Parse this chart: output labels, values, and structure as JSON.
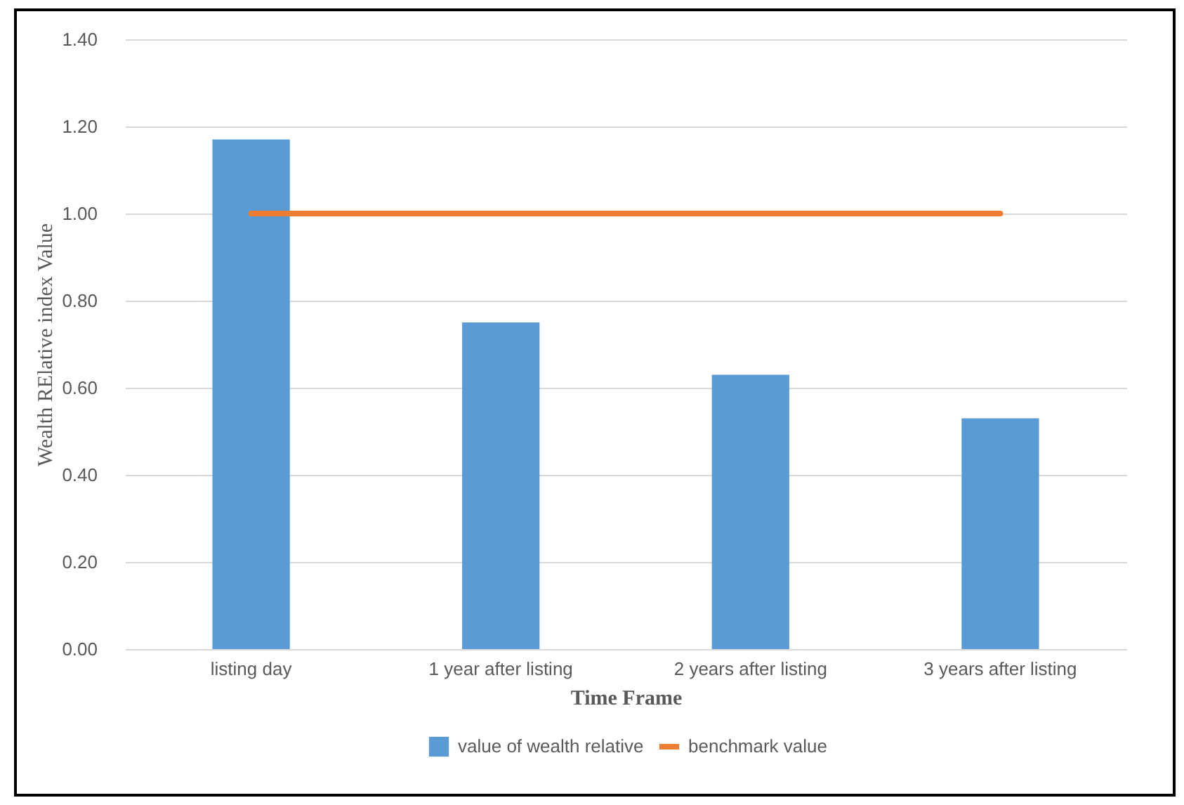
{
  "chart_data": {
    "type": "bar",
    "xlabel": "Time Frame",
    "ylabel": "Wealth RElative index Value",
    "categories": [
      "listing day",
      "1 year after listing",
      "2 years after listing",
      "3 years after listing"
    ],
    "series": [
      {
        "name": "value of wealth relative",
        "color": "#5b9bd5",
        "values": [
          1.17,
          0.75,
          0.63,
          0.53
        ]
      },
      {
        "name": "benchmark value",
        "type": "line",
        "color": "#ed7d31",
        "values": [
          1.0,
          1.0,
          1.0,
          1.0
        ]
      }
    ],
    "ylim": [
      0,
      1.4
    ],
    "yticks": [
      {
        "value": 0,
        "label": "0.00"
      },
      {
        "value": 0.2,
        "label": "0.20"
      },
      {
        "value": 0.4,
        "label": "0.40"
      },
      {
        "value": 0.6,
        "label": "0.60"
      },
      {
        "value": 0.8,
        "label": "0.80"
      },
      {
        "value": 1.0,
        "label": "1.00"
      },
      {
        "value": 1.2,
        "label": "1.20"
      },
      {
        "value": 1.4,
        "label": "1.40"
      }
    ],
    "grid": "y",
    "legend": "bottom"
  }
}
